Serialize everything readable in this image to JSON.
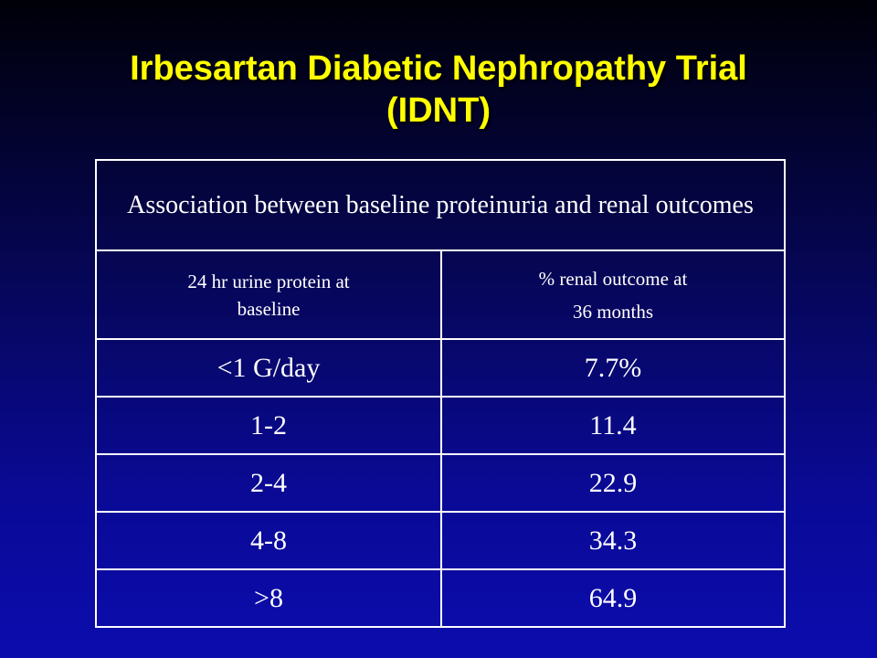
{
  "title": {
    "line1": "Irbesartan Diabetic Nephropathy Trial",
    "line2": "(IDNT)"
  },
  "table": {
    "header": "Association between baseline proteinuria and renal outcomes",
    "columns": {
      "left": {
        "line1": "24 hr urine protein at",
        "line2": "baseline"
      },
      "right": {
        "line1": "% renal outcome at",
        "line2": "36 months"
      }
    },
    "rows": [
      {
        "protein": "<1 G/day",
        "outcome": "7.7%"
      },
      {
        "protein": "1-2",
        "outcome": "11.4"
      },
      {
        "protein": "2-4",
        "outcome": "22.9"
      },
      {
        "protein": "4-8",
        "outcome": "34.3"
      },
      {
        "protein": ">8",
        "outcome": "64.9"
      }
    ]
  },
  "colors": {
    "title": "#ffff00",
    "text": "#ffffff",
    "background_top": "#000008",
    "background_bottom": "#0c0cae"
  }
}
